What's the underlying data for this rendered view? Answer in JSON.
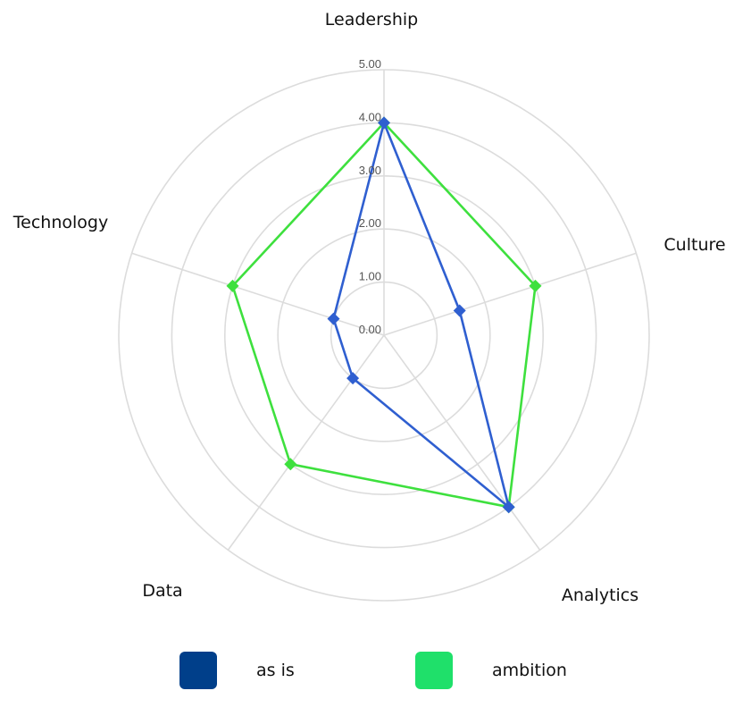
{
  "chart_data": {
    "type": "radar",
    "categories": [
      "Leadership",
      "Culture",
      "Analytics",
      "Data",
      "Technology"
    ],
    "rlim": [
      0,
      5
    ],
    "ticks": [
      "0.00",
      "1.00",
      "2.00",
      "3.00",
      "4.00",
      "5.00"
    ],
    "grid": true,
    "legend_position": "bottom",
    "series": [
      {
        "name": "as is",
        "values": [
          4.0,
          1.5,
          4.0,
          1.0,
          1.0
        ],
        "color": "#2f5fd0",
        "legend_color": "#003f8a"
      },
      {
        "name": "ambition",
        "values": [
          4.0,
          3.0,
          4.0,
          3.0,
          3.0
        ],
        "color": "#3ee03e",
        "legend_color": "#1fe06a"
      }
    ]
  }
}
